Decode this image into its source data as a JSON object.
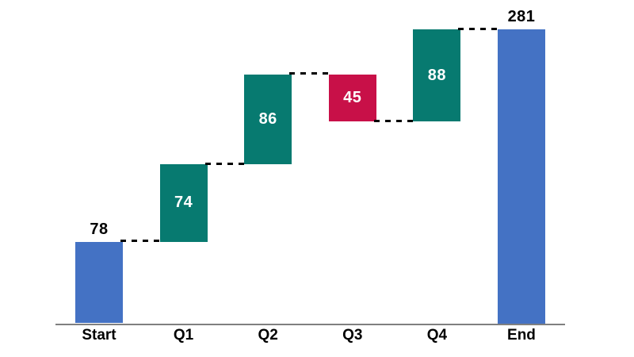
{
  "chart_data": {
    "type": "waterfall",
    "title": "",
    "categories": [
      "Start",
      "Q1",
      "Q2",
      "Q3",
      "Q4",
      "End"
    ],
    "values": [
      78,
      74,
      86,
      -45,
      88,
      281
    ],
    "labels": [
      "78",
      "74",
      "86",
      "45",
      "88",
      "281"
    ],
    "roles": [
      "total",
      "increase",
      "increase",
      "decrease",
      "increase",
      "total"
    ],
    "cumulative_after": [
      78,
      152,
      238,
      193,
      281,
      281
    ],
    "ylim": [
      0,
      281
    ],
    "grid": false,
    "legend": false,
    "connector_style": "dashed",
    "colors": {
      "total": "#4472C4",
      "increase": "#077A70",
      "decrease": "#C81048",
      "connector": "#000000",
      "axis": "#7F7F7F",
      "label_inside": "#FFFFFF",
      "label_outside": "#000000",
      "category_label": "#000000",
      "background": "#FFFFFF"
    }
  }
}
